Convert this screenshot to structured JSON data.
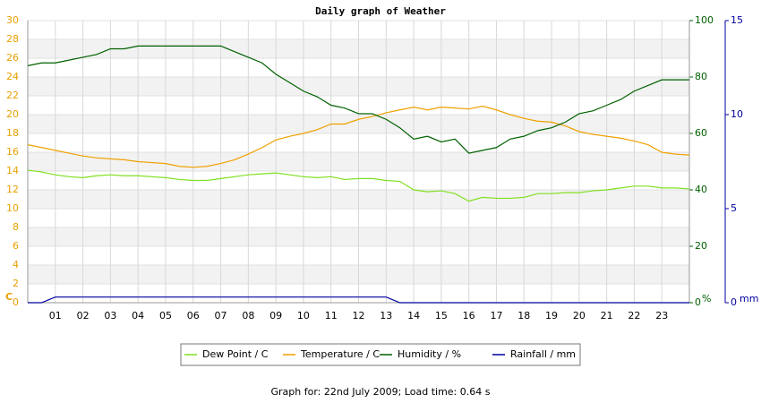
{
  "chart_data": {
    "type": "line",
    "title": "Daily graph of Weather",
    "footer": "Graph for: 22nd July 2009; Load time: 0.64 s",
    "y_unit": "C",
    "y2_unit": "%",
    "y3_unit": "mm",
    "x": [
      0,
      0.5,
      1,
      1.5,
      2,
      2.5,
      3,
      3.5,
      4,
      4.5,
      5,
      5.5,
      6,
      6.5,
      7,
      7.5,
      8,
      8.5,
      9,
      9.5,
      10,
      10.5,
      11,
      11.5,
      12,
      12.5,
      13,
      13.5,
      14,
      14.5,
      15,
      15.5,
      16,
      16.5,
      17,
      17.5,
      18,
      18.5,
      19,
      19.5,
      20,
      20.5,
      21,
      21.5,
      22,
      22.5,
      23,
      23.5,
      24
    ],
    "xlim": [
      0,
      24
    ],
    "xticks": [
      {
        "value": 1,
        "label": "01"
      },
      {
        "value": 2,
        "label": "02"
      },
      {
        "value": 3,
        "label": "03"
      },
      {
        "value": 4,
        "label": "04"
      },
      {
        "value": 5,
        "label": "05"
      },
      {
        "value": 6,
        "label": "06"
      },
      {
        "value": 7,
        "label": "07"
      },
      {
        "value": 8,
        "label": "08"
      },
      {
        "value": 9,
        "label": "09"
      },
      10,
      11,
      12,
      13,
      14,
      15,
      16,
      17,
      18,
      19,
      20,
      21,
      22,
      23
    ],
    "ylim": [
      0,
      30
    ],
    "yticks": [
      0,
      2,
      4,
      6,
      8,
      10,
      12,
      14,
      16,
      18,
      20,
      22,
      24,
      26,
      28,
      30
    ],
    "y2lim": [
      0,
      100
    ],
    "y2ticks": [
      0,
      20,
      40,
      60,
      80,
      100
    ],
    "y3lim": [
      0,
      15
    ],
    "y3ticks": [
      0,
      5,
      10,
      15
    ],
    "grid": true,
    "series": [
      {
        "name": "Dew Point / C",
        "color": "#80e020",
        "values": [
          14.1,
          13.9,
          13.6,
          13.4,
          13.3,
          13.5,
          13.6,
          13.5,
          13.5,
          13.4,
          13.3,
          13.1,
          13.0,
          13.0,
          13.2,
          13.4,
          13.6,
          13.7,
          13.8,
          13.6,
          13.4,
          13.3,
          13.4,
          13.1,
          13.2,
          13.2,
          13.0,
          12.9,
          12.0,
          11.8,
          11.9,
          11.6,
          10.8,
          11.2,
          11.1,
          11.1,
          11.2,
          11.6,
          11.6,
          11.7,
          11.7,
          11.9,
          12.0,
          12.2,
          12.4,
          12.4,
          12.2,
          12.2,
          12.1
        ]
      },
      {
        "name": "Temperature / C",
        "color": "#f0a000",
        "values": [
          16.8,
          16.5,
          16.2,
          15.9,
          15.6,
          15.4,
          15.3,
          15.2,
          15.0,
          14.9,
          14.8,
          14.5,
          14.4,
          14.5,
          14.8,
          15.2,
          15.8,
          16.5,
          17.3,
          17.7,
          18.0,
          18.4,
          19.0,
          19.0,
          19.5,
          19.8,
          20.2,
          20.5,
          20.8,
          20.5,
          20.8,
          20.7,
          20.6,
          20.9,
          20.5,
          20.0,
          19.6,
          19.3,
          19.2,
          18.8,
          18.2,
          17.9,
          17.7,
          17.5,
          17.2,
          16.8,
          16.0,
          15.8,
          15.7
        ]
      },
      {
        "name": "Humidity / %",
        "color": "#006000",
        "axis": "y2",
        "values": [
          84,
          85,
          85,
          86,
          87,
          88,
          90,
          90,
          91,
          91,
          91,
          91,
          91,
          91,
          91,
          89,
          87,
          85,
          81,
          78,
          75,
          73,
          70,
          69,
          67,
          67,
          65,
          62,
          58,
          59,
          57,
          58,
          53,
          54,
          55,
          58,
          59,
          61,
          62,
          64,
          67,
          68,
          70,
          72,
          75,
          77,
          79,
          79,
          79
        ]
      },
      {
        "name": "Rainfall / mm",
        "color": "#0000a0",
        "axis": "y3",
        "values": [
          0,
          0,
          0.3,
          0.3,
          0.3,
          0.3,
          0.3,
          0.3,
          0.3,
          0.3,
          0.3,
          0.3,
          0.3,
          0.3,
          0.3,
          0.3,
          0.3,
          0.3,
          0.3,
          0.3,
          0.3,
          0.3,
          0.3,
          0.3,
          0.3,
          0.3,
          0.3,
          0,
          0,
          0,
          0,
          0,
          0,
          0,
          0,
          0,
          0,
          0,
          0,
          0,
          0,
          0,
          0,
          0,
          0,
          0,
          0,
          0,
          0
        ]
      }
    ]
  }
}
